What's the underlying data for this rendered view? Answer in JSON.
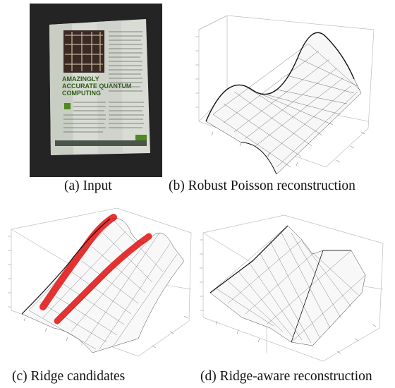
{
  "figure": {
    "panels": [
      {
        "id": "a",
        "caption": "(a) Input",
        "photo_text": {
          "headline": "AMAZINGLY ACCURATE QUANTUM COMPUTING"
        }
      },
      {
        "id": "b",
        "caption": "(b) Robust Poisson reconstruction"
      },
      {
        "id": "c",
        "caption": "(c) Ridge candidates"
      },
      {
        "id": "d",
        "caption": "(d) Ridge-aware reconstruction"
      }
    ]
  },
  "colors": {
    "photo_background": "#232323",
    "paper": "#d9dcd6",
    "mesh": "#222222",
    "ridge_candidates": "#e01010"
  }
}
